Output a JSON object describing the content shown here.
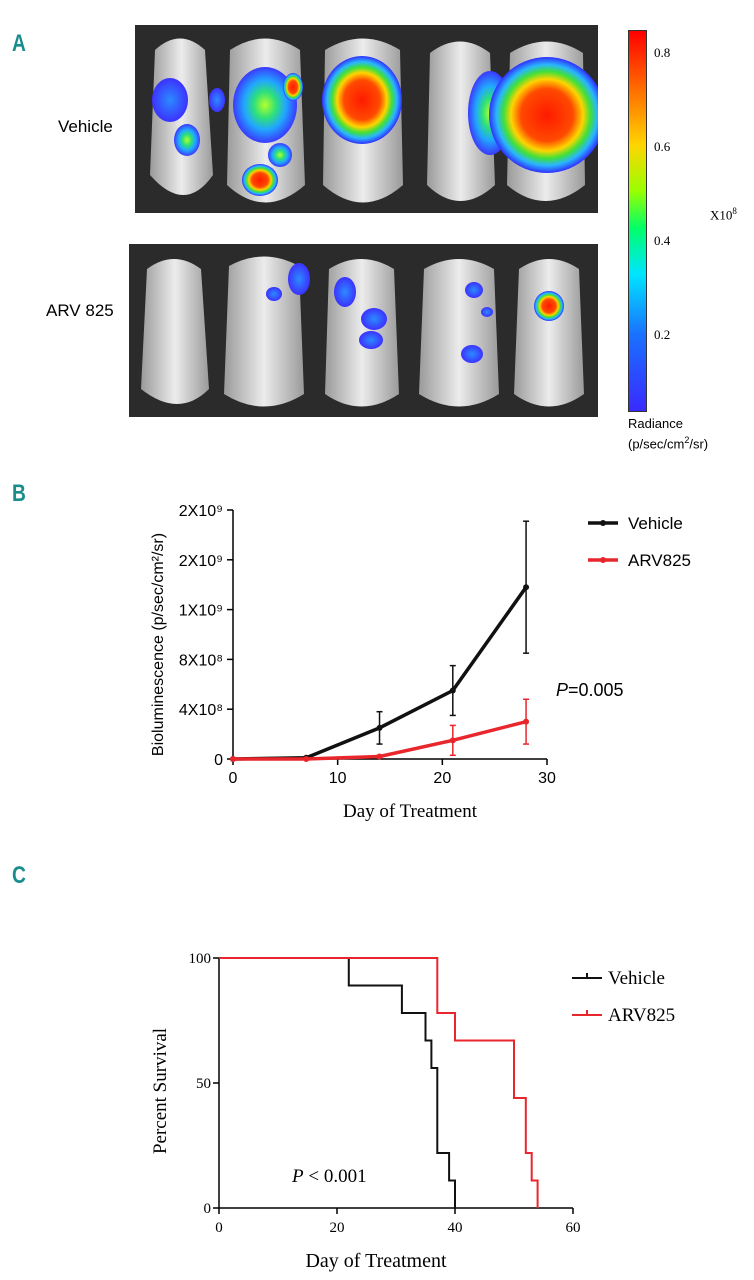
{
  "panelA": {
    "letter": "A",
    "row1_label": "Vehicle",
    "row2_label": "ARV 825",
    "colorbar": {
      "ticks": [
        "0.8",
        "0.6",
        "0.4",
        "0.2"
      ],
      "tick_values": [
        0.8,
        0.6,
        0.4,
        0.2
      ],
      "range": [
        0.04,
        0.85
      ],
      "multiplier": "X10",
      "multiplier_exp": "8",
      "label_line1": "Radiance",
      "label_line2": "(p/sec/cm",
      "label_sup": "2",
      "label_line2_end": "/sr)"
    }
  },
  "panelB": {
    "letter": "B",
    "chart_data": {
      "type": "line",
      "xlabel": "Day of Treatment",
      "ylabel": "Bioluminescence (p/sec/cm²/sr)",
      "x_ticks": [
        0,
        10,
        20,
        30
      ],
      "xlim": [
        0,
        30
      ],
      "y_tick_values": [
        0,
        400000000,
        800000000,
        1200000000,
        1600000000,
        2000000000
      ],
      "y_tick_labels": [
        "0",
        "4X10⁸",
        "8X10⁸",
        "1X10⁹",
        "2X10⁹",
        "2X10⁹"
      ],
      "ylim": [
        0,
        2000000000
      ],
      "annotation": "=0.005",
      "annotation_italic": "P",
      "series": [
        {
          "name": "Vehicle",
          "color": "#111111",
          "x": [
            0,
            7,
            14,
            21,
            28
          ],
          "y": [
            0,
            10000000,
            250000000,
            550000000,
            1380000000
          ],
          "err": [
            0,
            5000000,
            130000000,
            200000000,
            530000000
          ]
        },
        {
          "name": "ARV825",
          "color": "#e8262b",
          "x": [
            0,
            7,
            14,
            21,
            28
          ],
          "y": [
            0,
            0,
            20000000,
            150000000,
            300000000
          ],
          "err": [
            0,
            0,
            10000000,
            120000000,
            180000000
          ]
        }
      ]
    }
  },
  "panelC": {
    "letter": "C",
    "chart_data": {
      "type": "line",
      "xlabel": "Day of Treatment",
      "ylabel": "Percent Survival",
      "x_ticks": [
        0,
        20,
        40,
        60
      ],
      "y_ticks": [
        0,
        50,
        100
      ],
      "xlim": [
        0,
        60
      ],
      "ylim": [
        0,
        100
      ],
      "annotation_italic": "P",
      "annotation": " < 0.001",
      "series": [
        {
          "name": "Vehicle",
          "color": "#111111",
          "x": [
            0,
            22,
            22,
            31,
            31,
            35,
            35,
            36,
            36,
            37,
            37,
            39,
            39,
            40,
            40
          ],
          "y": [
            100,
            100,
            89,
            89,
            78,
            78,
            67,
            67,
            56,
            56,
            22,
            22,
            11,
            11,
            0
          ]
        },
        {
          "name": "ARV825",
          "color": "#e8262b",
          "x": [
            0,
            37,
            37,
            40,
            40,
            50,
            50,
            52,
            52,
            53,
            53,
            54,
            54
          ],
          "y": [
            100,
            100,
            78,
            78,
            67,
            67,
            44,
            44,
            22,
            22,
            11,
            11,
            0
          ]
        }
      ]
    }
  }
}
